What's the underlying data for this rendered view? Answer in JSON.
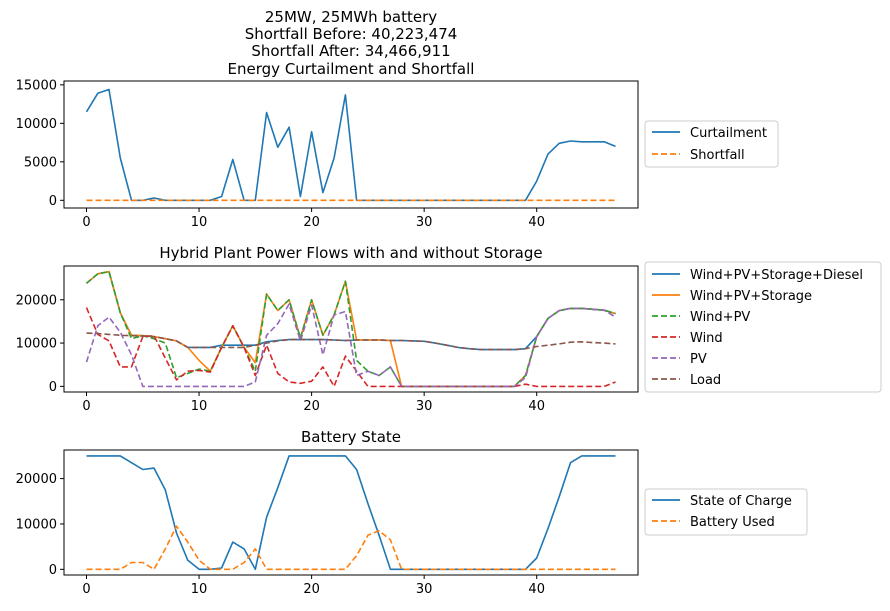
{
  "chart_data": [
    {
      "type": "line",
      "title_lines": [
        "25MW, 25MWh battery",
        "Shortfall Before: 40,223,474",
        "Shortfall After: 34,466,911",
        "Energy Curtailment and Shortfall"
      ],
      "xlim": [
        -2,
        49
      ],
      "ylim": [
        -1000,
        15500
      ],
      "xticks": [
        0,
        10,
        20,
        30,
        40
      ],
      "yticks": [
        0,
        5000,
        10000,
        15000
      ],
      "x": [
        0,
        1,
        2,
        3,
        4,
        5,
        6,
        7,
        8,
        9,
        10,
        11,
        12,
        13,
        14,
        15,
        16,
        17,
        18,
        19,
        20,
        21,
        22,
        23,
        24,
        25,
        26,
        27,
        28,
        29,
        30,
        31,
        32,
        33,
        34,
        35,
        36,
        37,
        38,
        39,
        40,
        41,
        42,
        43,
        44,
        45,
        46,
        47
      ],
      "series": [
        {
          "name": "Curtailment",
          "color": "#1f77b4",
          "dash": "solid",
          "values": [
            11500,
            13900,
            14400,
            5500,
            0,
            0,
            300,
            0,
            0,
            0,
            0,
            0,
            500,
            5300,
            0,
            0,
            11400,
            6900,
            9500,
            500,
            8900,
            1000,
            5500,
            13700,
            0,
            0,
            0,
            0,
            0,
            0,
            0,
            0,
            0,
            0,
            0,
            0,
            0,
            0,
            0,
            0,
            2500,
            6000,
            7400,
            7700,
            7600,
            7600,
            7600,
            7000
          ]
        },
        {
          "name": "Shortfall",
          "color": "#ff7f0e",
          "dash": "dashed",
          "values": [
            0,
            0,
            0,
            0,
            0,
            0,
            0,
            0,
            0,
            0,
            0,
            0,
            0,
            0,
            0,
            0,
            0,
            0,
            0,
            0,
            0,
            0,
            0,
            0,
            0,
            0,
            0,
            0,
            0,
            0,
            0,
            0,
            0,
            0,
            0,
            0,
            0,
            0,
            0,
            0,
            0,
            0,
            0,
            0,
            0,
            0,
            0,
            0
          ]
        }
      ]
    },
    {
      "type": "line",
      "title_lines": [
        "Hybrid Plant Power Flows with and without Storage"
      ],
      "xlim": [
        -2,
        49
      ],
      "ylim": [
        -1300,
        27800
      ],
      "xticks": [
        0,
        10,
        20,
        30,
        40
      ],
      "yticks": [
        0,
        10000,
        20000
      ],
      "x": [
        0,
        1,
        2,
        3,
        4,
        5,
        6,
        7,
        8,
        9,
        10,
        11,
        12,
        13,
        14,
        15,
        16,
        17,
        18,
        19,
        20,
        21,
        22,
        23,
        24,
        25,
        26,
        27,
        28,
        29,
        30,
        31,
        32,
        33,
        34,
        35,
        36,
        37,
        38,
        39,
        40,
        41,
        42,
        43,
        44,
        45,
        46,
        47
      ],
      "series": [
        {
          "name": "Wind+PV+Storage+Diesel",
          "color": "#1f77b4",
          "dash": "solid",
          "values": [
            23800,
            26000,
            26500,
            17000,
            11800,
            11700,
            11500,
            11000,
            10500,
            9000,
            9000,
            9000,
            9500,
            9500,
            9500,
            9500,
            10300,
            10600,
            10800,
            10800,
            10800,
            10800,
            10700,
            10600,
            10700,
            10700,
            10700,
            10600,
            10600,
            10500,
            10400,
            10000,
            9500,
            9000,
            8700,
            8500,
            8500,
            8500,
            8500,
            8700,
            11500,
            15700,
            17500,
            18000,
            18000,
            17800,
            17600,
            16800
          ]
        },
        {
          "name": "Wind+PV+Storage",
          "color": "#ff7f0e",
          "dash": "solid",
          "values": [
            23800,
            26000,
            26500,
            17000,
            11800,
            11700,
            11500,
            11000,
            10500,
            9000,
            6000,
            3500,
            9000,
            14000,
            9000,
            5500,
            21300,
            17500,
            20000,
            11200,
            20000,
            11800,
            16500,
            24300,
            10700,
            10700,
            10700,
            10600,
            0,
            0,
            0,
            0,
            0,
            0,
            0,
            0,
            0,
            0,
            0,
            2500,
            11500,
            15700,
            17500,
            18000,
            18000,
            17800,
            17600,
            16800
          ]
        },
        {
          "name": "Wind+PV",
          "color": "#2ca02c",
          "dash": "dashed",
          "values": [
            23800,
            26000,
            26500,
            17000,
            11000,
            11700,
            11000,
            10000,
            2000,
            3000,
            4000,
            3500,
            9000,
            14000,
            9000,
            3500,
            21300,
            17500,
            20000,
            11200,
            20000,
            11800,
            16500,
            24300,
            6000,
            3500,
            2500,
            4500,
            0,
            0,
            0,
            0,
            0,
            0,
            0,
            0,
            0,
            0,
            0,
            2500,
            11500,
            15700,
            17500,
            18000,
            18000,
            17800,
            17600,
            16800
          ]
        },
        {
          "name": "Wind",
          "color": "#d62728",
          "dash": "dashed",
          "values": [
            18200,
            12000,
            10500,
            4500,
            4500,
            11500,
            11700,
            6500,
            1500,
            3500,
            3700,
            3300,
            9000,
            14000,
            9000,
            2500,
            9500,
            3000,
            1000,
            700,
            1200,
            4500,
            0,
            7000,
            3500,
            0,
            0,
            0,
            0,
            0,
            0,
            0,
            0,
            0,
            0,
            0,
            0,
            0,
            0,
            500,
            0,
            0,
            0,
            0,
            0,
            0,
            0,
            1000
          ]
        },
        {
          "name": "PV",
          "color": "#9467bd",
          "dash": "dashed",
          "values": [
            5600,
            14000,
            16000,
            12500,
            7300,
            0,
            0,
            0,
            0,
            0,
            0,
            0,
            0,
            0,
            0,
            1000,
            11800,
            14500,
            19000,
            10500,
            18800,
            7300,
            16500,
            17300,
            2500,
            3500,
            2500,
            4500,
            0,
            0,
            0,
            0,
            0,
            0,
            0,
            0,
            0,
            0,
            0,
            2000,
            11500,
            15700,
            17500,
            18000,
            18000,
            17800,
            17600,
            16000
          ]
        },
        {
          "name": "Load",
          "color": "#8c564b",
          "dash": "dashed",
          "values": [
            12300,
            12200,
            12000,
            11800,
            11700,
            11600,
            11500,
            11000,
            10500,
            9000,
            9000,
            9000,
            9000,
            9000,
            9000,
            9500,
            10000,
            10500,
            10800,
            10800,
            10800,
            10800,
            10700,
            10600,
            10700,
            10700,
            10700,
            10600,
            10600,
            10500,
            10400,
            10000,
            9500,
            9000,
            8700,
            8500,
            8500,
            8500,
            8500,
            8700,
            9200,
            9500,
            9800,
            10200,
            10300,
            10100,
            10000,
            9800
          ]
        }
      ]
    },
    {
      "type": "line",
      "title_lines": [
        "Battery State"
      ],
      "xlim": [
        -2,
        49
      ],
      "ylim": [
        -1250,
        26300
      ],
      "xticks": [
        0,
        10,
        20,
        30,
        40
      ],
      "yticks": [
        0,
        10000,
        20000
      ],
      "x": [
        0,
        1,
        2,
        3,
        4,
        5,
        6,
        7,
        8,
        9,
        10,
        11,
        12,
        13,
        14,
        15,
        16,
        17,
        18,
        19,
        20,
        21,
        22,
        23,
        24,
        25,
        26,
        27,
        28,
        29,
        30,
        31,
        32,
        33,
        34,
        35,
        36,
        37,
        38,
        39,
        40,
        41,
        42,
        43,
        44,
        45,
        46,
        47
      ],
      "series": [
        {
          "name": "State of Charge",
          "color": "#1f77b4",
          "dash": "solid",
          "values": [
            25000,
            25000,
            25000,
            25000,
            23500,
            22000,
            22300,
            17500,
            8000,
            2000,
            0,
            0,
            300,
            6000,
            4500,
            0,
            11500,
            18000,
            25000,
            25000,
            25000,
            25000,
            25000,
            25000,
            22000,
            14500,
            7500,
            0,
            0,
            0,
            0,
            0,
            0,
            0,
            0,
            0,
            0,
            0,
            0,
            0,
            2500,
            9000,
            16000,
            23500,
            25000,
            25000,
            25000,
            25000
          ]
        },
        {
          "name": "Battery Used",
          "color": "#ff7f0e",
          "dash": "dashed",
          "values": [
            0,
            0,
            0,
            0,
            1500,
            1500,
            0,
            4500,
            9500,
            6000,
            2000,
            0,
            0,
            0,
            1500,
            4500,
            0,
            0,
            0,
            0,
            0,
            0,
            0,
            0,
            3000,
            7500,
            8500,
            6500,
            0,
            0,
            0,
            0,
            0,
            0,
            0,
            0,
            0,
            0,
            0,
            0,
            0,
            0,
            0,
            0,
            0,
            0,
            0,
            0
          ]
        }
      ]
    }
  ]
}
